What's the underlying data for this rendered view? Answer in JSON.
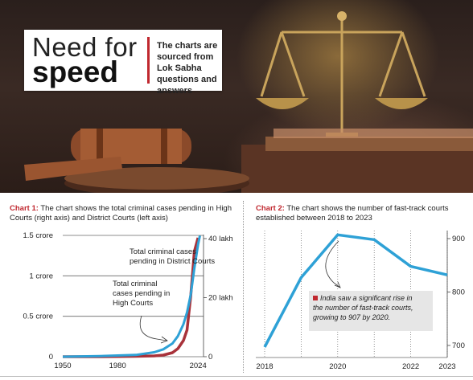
{
  "hero": {
    "title_line1": "Need for",
    "title_line2": "speed",
    "note": "The charts are sourced from Lok Sabha questions and answers"
  },
  "chart1_caption": {
    "lead": "Chart 1:",
    "text": " The chart shows the total criminal cases pending in High Courts (right axis) and District Courts (left axis)"
  },
  "chart2_caption": {
    "lead": "Chart 2:",
    "text": " The chart shows the number of  fast-track courts established between 2018 to 2023"
  },
  "chart_data": [
    {
      "type": "line",
      "x_ticks": [
        "1950",
        "1980",
        "2024"
      ],
      "xlim": [
        1950,
        2027
      ],
      "left_axis": {
        "ticks": [
          "0",
          "0.5 crore",
          "1 crore",
          "1.5 crore"
        ],
        "values": [
          0,
          0.5,
          1,
          1.5
        ],
        "unit": "crore"
      },
      "right_axis": {
        "ticks": [
          "0",
          "20 lakh",
          "40 lakh"
        ],
        "values": [
          0,
          20,
          40
        ],
        "unit": "lakh"
      },
      "series": [
        {
          "name": "Total criminal cases pending in District Courts",
          "axis": "left",
          "color": "#a8323a",
          "x": [
            1950,
            1970,
            1990,
            2000,
            2005,
            2010,
            2013,
            2016,
            2018,
            2020,
            2022,
            2024
          ],
          "values": [
            0.0,
            0.0,
            0.005,
            0.01,
            0.02,
            0.05,
            0.1,
            0.2,
            0.33,
            0.75,
            1.3,
            1.47
          ]
        },
        {
          "name": "Total criminal cases pending in High Courts",
          "axis": "right",
          "color": "#2ea1d6",
          "x": [
            1950,
            1970,
            1990,
            2000,
            2005,
            2010,
            2013,
            2016,
            2018,
            2020,
            2022,
            2024,
            2025
          ],
          "values": [
            0.0,
            0.2,
            0.6,
            1.5,
            2.5,
            4.5,
            7.0,
            11.0,
            15.0,
            21.0,
            30.0,
            38.0,
            41.0
          ]
        }
      ],
      "annotations": [
        "Total criminal cases pending in District Courts",
        "Total criminal cases pending in High Courts"
      ]
    },
    {
      "type": "line",
      "x_ticks": [
        "2018",
        "2020",
        "2022",
        "2023"
      ],
      "x": [
        2018,
        2019,
        2020,
        2021,
        2022,
        2023
      ],
      "y_ticks": [
        "700",
        "800",
        "900"
      ],
      "ylim": [
        690,
        915
      ],
      "series": [
        {
          "color": "#2ea1d6",
          "values": [
            697,
            827,
            907,
            898,
            848,
            832
          ]
        }
      ],
      "annotation": "India saw a significant rise in the number of fast-track courts, growing to 907 by 2020."
    }
  ]
}
